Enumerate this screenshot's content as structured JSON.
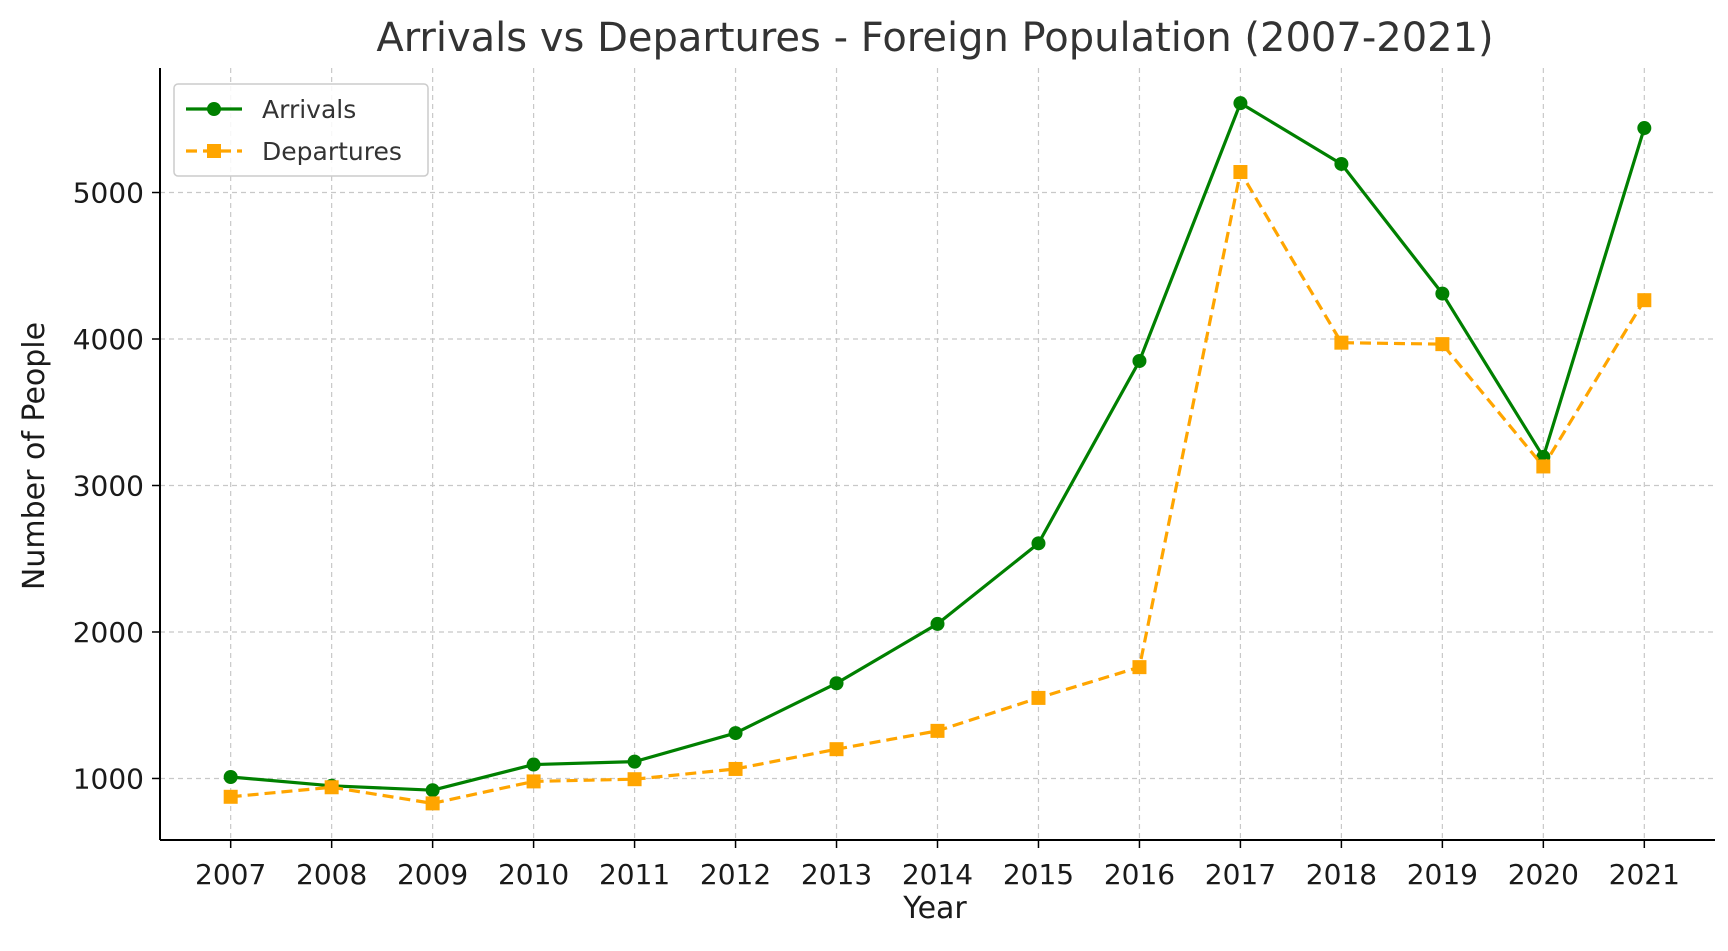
{
  "chart_data": {
    "type": "line",
    "title": "Arrivals vs Departures - Foreign Population (2007-2021)",
    "xlabel": "Year",
    "ylabel": "Number of People",
    "x": [
      2007,
      2008,
      2009,
      2010,
      2011,
      2012,
      2013,
      2014,
      2015,
      2016,
      2017,
      2018,
      2019,
      2020,
      2021
    ],
    "x_tick_labels": [
      "2007",
      "2008",
      "2009",
      "2010",
      "2011",
      "2012",
      "2013",
      "2014",
      "2015",
      "2016",
      "2017",
      "2018",
      "2019",
      "2020",
      "2021"
    ],
    "y_ticks": [
      1000,
      2000,
      3000,
      4000,
      5000
    ],
    "y_tick_labels": [
      "1000",
      "2000",
      "3000",
      "4000",
      "5000"
    ],
    "xlim": [
      2006.3,
      2021.7
    ],
    "ylim": [
      580,
      5850
    ],
    "grid": true,
    "legend_position": "upper-left",
    "series": [
      {
        "name": "Arrivals",
        "color": "#008000",
        "line_style": "solid",
        "marker": "circle",
        "values": [
          1010,
          950,
          920,
          1095,
          1115,
          1310,
          1650,
          2055,
          2605,
          3850,
          5610,
          5195,
          4310,
          3195,
          5440
        ]
      },
      {
        "name": "Departures",
        "color": "#FFA500",
        "line_style": "dashed",
        "marker": "square",
        "values": [
          875,
          940,
          830,
          980,
          995,
          1065,
          1200,
          1325,
          1550,
          1760,
          5140,
          3975,
          3965,
          3130,
          4265
        ]
      }
    ]
  }
}
